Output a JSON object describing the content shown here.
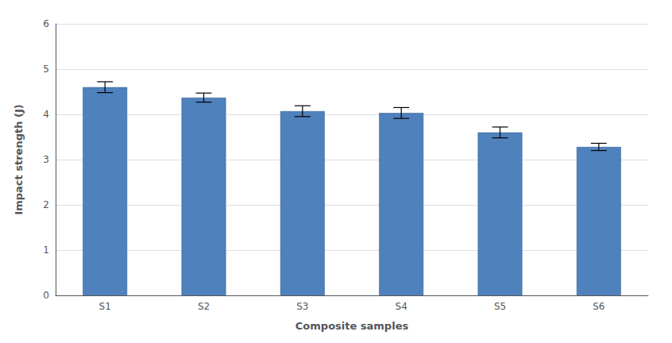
{
  "chart_data": {
    "type": "bar",
    "categories": [
      "S1",
      "S2",
      "S3",
      "S4",
      "S5",
      "S6"
    ],
    "values": [
      4.6,
      4.37,
      4.07,
      4.03,
      3.6,
      3.28
    ],
    "errors": [
      0.12,
      0.1,
      0.12,
      0.12,
      0.12,
      0.08
    ],
    "color": "#4F81BD",
    "xlabel": "Composite samples",
    "ylabel": "Impact strength (J)",
    "ylim": [
      0,
      6
    ],
    "yticks": [
      0,
      1,
      2,
      3,
      4,
      5,
      6
    ],
    "grid": true
  }
}
